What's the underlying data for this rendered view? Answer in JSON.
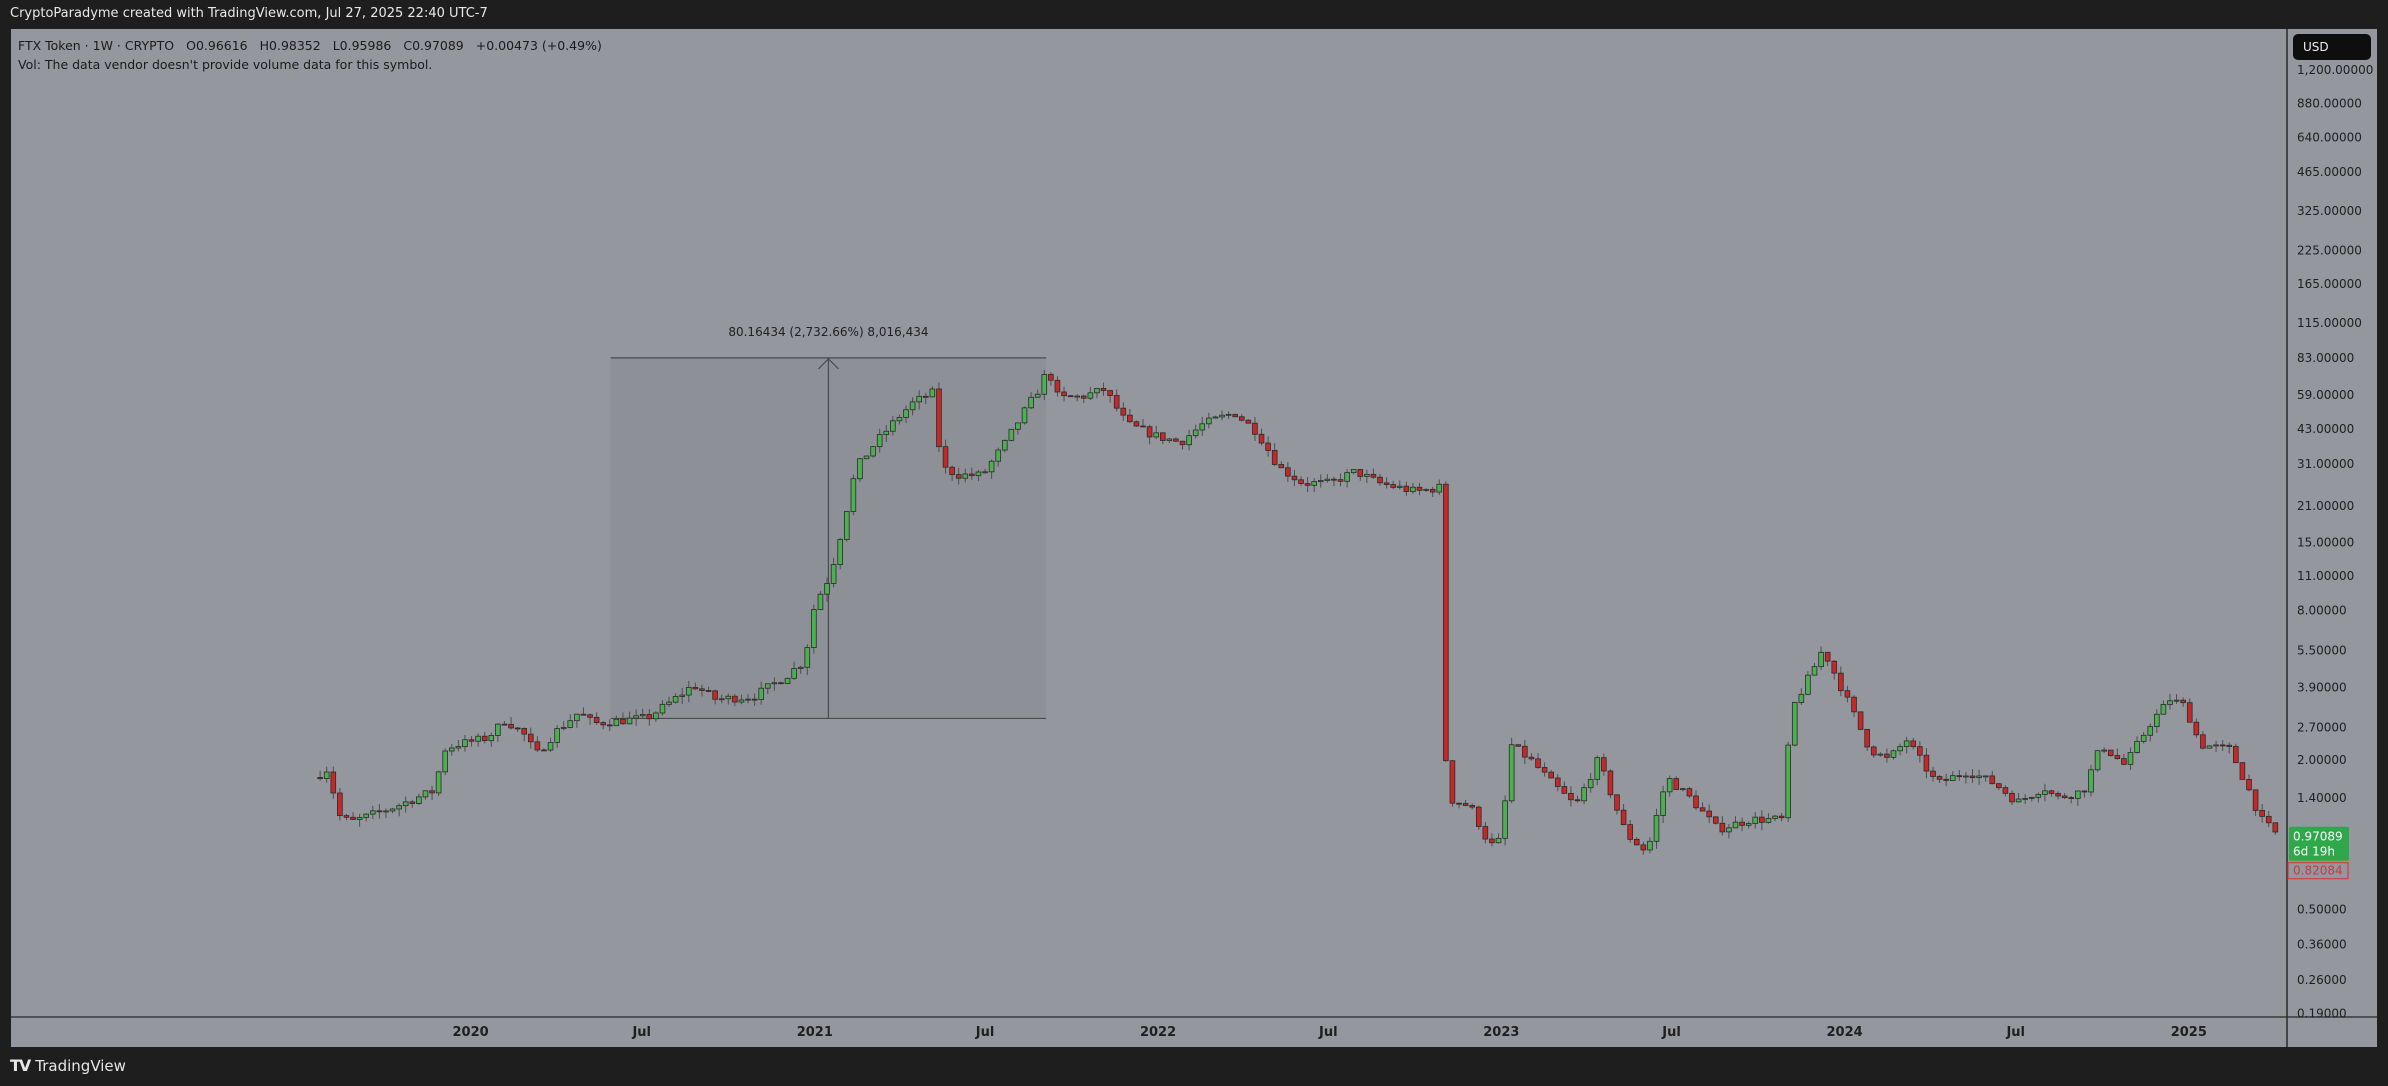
{
  "header": {
    "attribution": "CryptoParadyme created with TradingView.com, Jul 27, 2025 22:40 UTC-7"
  },
  "legend": {
    "symbol": "FTX Token · 1W · CRYPTO",
    "open": "O0.96616",
    "high": "H0.98352",
    "low": "L0.95986",
    "close": "C0.97089",
    "change": "+0.00473 (+0.49%)",
    "volume_note": "Vol: The data vendor doesn't provide volume data for this symbol."
  },
  "price_scale": {
    "currency": "USD",
    "current_price": "0.97089",
    "countdown": "6d 19h",
    "marker_price": "0.82084"
  },
  "brand": {
    "name": "TradingView"
  },
  "colors": {
    "up": "#4caf50",
    "down": "#c62828",
    "background": "#95979f",
    "frame": "#1e1e1e"
  },
  "chart_data": {
    "type": "candlestick",
    "interval": "1W",
    "y_scale": "log",
    "ylim": [
      0.17,
      1400
    ],
    "grid": false,
    "y_ticks": [
      "1,200.00000",
      "880.00000",
      "640.00000",
      "465.00000",
      "325.00000",
      "225.00000",
      "165.00000",
      "115.00000",
      "83.00000",
      "59.00000",
      "43.00000",
      "31.00000",
      "21.00000",
      "15.00000",
      "11.00000",
      "8.00000",
      "5.50000",
      "3.90000",
      "2.70000",
      "2.00000",
      "1.40000",
      "0.50000",
      "0.36000",
      "0.26000",
      "0.19000"
    ],
    "y_tick_values": [
      1200,
      880,
      640,
      465,
      325,
      225,
      165,
      115,
      83,
      59,
      43,
      31,
      21,
      15,
      11,
      8,
      5.5,
      3.9,
      2.7,
      2.0,
      1.4,
      0.5,
      0.36,
      0.26,
      0.19
    ],
    "x_ticks": [
      {
        "label": "2020",
        "date": "2020-01-01"
      },
      {
        "label": "Jul",
        "date": "2020-07-01"
      },
      {
        "label": "2021",
        "date": "2021-01-01"
      },
      {
        "label": "Jul",
        "date": "2021-07-01"
      },
      {
        "label": "2022",
        "date": "2022-01-01"
      },
      {
        "label": "Jul",
        "date": "2022-07-01"
      },
      {
        "label": "2023",
        "date": "2023-01-01"
      },
      {
        "label": "Jul",
        "date": "2023-07-01"
      },
      {
        "label": "2024",
        "date": "2024-01-01"
      },
      {
        "label": "Jul",
        "date": "2024-07-01"
      },
      {
        "label": "2025",
        "date": "2025-01-01"
      }
    ],
    "approx_closes": [
      [
        "2019-07-25",
        1.75
      ],
      [
        "2019-08-03",
        1.85
      ],
      [
        "2019-08-13",
        1.2
      ],
      [
        "2019-08-26",
        1.12
      ],
      [
        "2019-10-14",
        1.3
      ],
      [
        "2019-11-23",
        1.5
      ],
      [
        "2019-12-04",
        2.2
      ],
      [
        "2019-12-17",
        2.3
      ],
      [
        "2020-01-19",
        2.45
      ],
      [
        "2020-02-07",
        2.9
      ],
      [
        "2020-02-28",
        2.5
      ],
      [
        "2020-03-11",
        2.1
      ],
      [
        "2020-04-01",
        2.6
      ],
      [
        "2020-04-25",
        3.1
      ],
      [
        "2020-05-11",
        2.8
      ],
      [
        "2020-07-07",
        2.95
      ],
      [
        "2020-07-31",
        3.4
      ],
      [
        "2020-08-25",
        4.0
      ],
      [
        "2020-09-18",
        3.5
      ],
      [
        "2020-10-28",
        3.6
      ],
      [
        "2020-11-30",
        4.3
      ],
      [
        "2020-12-21",
        5.0
      ],
      [
        "2021-01-01",
        8.5
      ],
      [
        "2021-01-17",
        11
      ],
      [
        "2021-01-30",
        17
      ],
      [
        "2021-02-14",
        30
      ],
      [
        "2021-03-07",
        38
      ],
      [
        "2021-03-31",
        48
      ],
      [
        "2021-04-16",
        55
      ],
      [
        "2021-05-06",
        60
      ],
      [
        "2021-05-16",
        30
      ],
      [
        "2021-06-04",
        28
      ],
      [
        "2021-06-28",
        28
      ],
      [
        "2021-07-23",
        38
      ],
      [
        "2021-08-11",
        50
      ],
      [
        "2021-08-27",
        62
      ],
      [
        "2021-09-06",
        75
      ],
      [
        "2021-09-17",
        57
      ],
      [
        "2021-10-12",
        58
      ],
      [
        "2021-11-05",
        62
      ],
      [
        "2021-11-29",
        45
      ],
      [
        "2022-01-01",
        40
      ],
      [
        "2022-01-25",
        38
      ],
      [
        "2022-02-18",
        45
      ],
      [
        "2022-03-23",
        50
      ],
      [
        "2022-04-16",
        42
      ],
      [
        "2022-05-10",
        30
      ],
      [
        "2022-06-04",
        26
      ],
      [
        "2022-07-03",
        26
      ],
      [
        "2022-07-30",
        29
      ],
      [
        "2022-08-24",
        26
      ],
      [
        "2022-10-03",
        24
      ],
      [
        "2022-10-27",
        25
      ],
      [
        "2022-11-04",
        1.4
      ],
      [
        "2022-11-29",
        1.3
      ],
      [
        "2022-12-20",
        0.9
      ],
      [
        "2023-01-01",
        0.95
      ],
      [
        "2023-01-11",
        2.3
      ],
      [
        "2023-02-01",
        2.0
      ],
      [
        "2023-02-25",
        1.6
      ],
      [
        "2023-03-21",
        1.3
      ],
      [
        "2023-04-14",
        2.0
      ],
      [
        "2023-05-14",
        1.0
      ],
      [
        "2023-06-05",
        0.85
      ],
      [
        "2023-06-26",
        1.7
      ],
      [
        "2023-07-21",
        1.4
      ],
      [
        "2023-08-19",
        1.05
      ],
      [
        "2023-09-23",
        1.15
      ],
      [
        "2023-10-26",
        1.15
      ],
      [
        "2023-11-06",
        3.2
      ],
      [
        "2023-11-27",
        4.5
      ],
      [
        "2023-12-09",
        5.6
      ],
      [
        "2024-01-02",
        3.6
      ],
      [
        "2024-01-28",
        2.2
      ],
      [
        "2024-02-16",
        2.0
      ],
      [
        "2024-03-07",
        2.4
      ],
      [
        "2024-04-08",
        1.6
      ],
      [
        "2024-05-11",
        1.8
      ],
      [
        "2024-06-09",
        1.6
      ],
      [
        "2024-07-03",
        1.35
      ],
      [
        "2024-07-31",
        1.55
      ],
      [
        "2024-08-13",
        1.4
      ],
      [
        "2024-09-11",
        1.5
      ],
      [
        "2024-09-30",
        2.3
      ],
      [
        "2024-10-25",
        1.9
      ],
      [
        "2024-11-21",
        2.8
      ],
      [
        "2024-12-12",
        3.5
      ],
      [
        "2024-12-28",
        3.3
      ],
      [
        "2025-01-13",
        2.3
      ],
      [
        "2025-02-14",
        2.2
      ],
      [
        "2025-03-03",
        1.6
      ],
      [
        "2025-03-19",
        1.15
      ],
      [
        "2025-03-30",
        1.05
      ],
      [
        "2025-04-08",
        0.97
      ]
    ],
    "measure": {
      "label": "80.16434 (2,732.66%) 8,016,434",
      "from_date": "2020-05-29",
      "to_date": "2021-09-04",
      "from_price": 2.9336,
      "to_price": 83.098
    }
  }
}
